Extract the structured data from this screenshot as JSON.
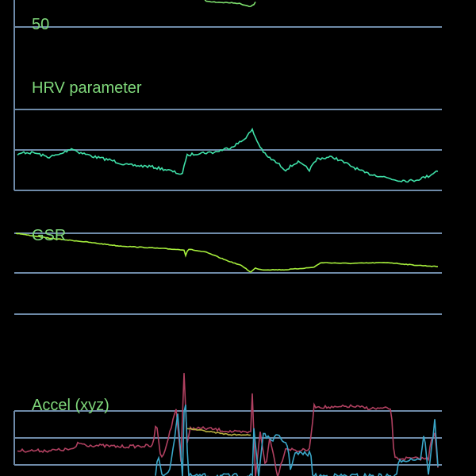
{
  "colors": {
    "background": "#000000",
    "grid": "#6e8aa8",
    "label": "#7fd77a",
    "hr_trace": "#7ee06e",
    "hrv_trace": "#3fe0a8",
    "gsr_trace": "#a6ee3c",
    "accel_x": "#b04060",
    "accel_y": "#3aa6c8",
    "accel_z": "#b8b040"
  },
  "panels": [
    {
      "id": "hr",
      "label": "50"
    },
    {
      "id": "hrv",
      "label": "HRV parameter"
    },
    {
      "id": "gsr",
      "label": "GSR"
    },
    {
      "id": "accel",
      "label": "Accel (xyz)"
    }
  ]
}
